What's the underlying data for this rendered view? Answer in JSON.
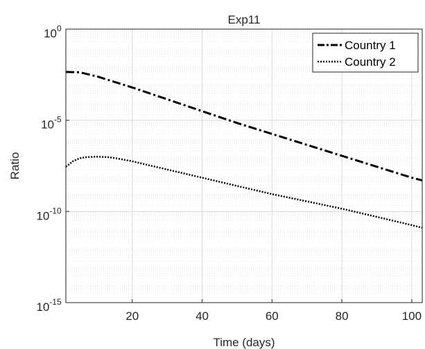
{
  "chart_data": {
    "type": "line",
    "title": "Exp11",
    "xlabel": "Time (days)",
    "ylabel": "Ratio",
    "xlim": [
      1,
      103
    ],
    "ylim_log10": [
      -15,
      0
    ],
    "yscale": "log",
    "grid": true,
    "minor_grid": true,
    "legend_position": "top-right",
    "x_ticks": [
      "20",
      "40",
      "60",
      "80",
      "100"
    ],
    "x_tick_values": [
      20,
      40,
      60,
      80,
      100
    ],
    "y_ticks": [
      {
        "base": "10",
        "exp": "0",
        "value": 0
      },
      {
        "base": "10",
        "exp": "-5",
        "value": -5
      },
      {
        "base": "10",
        "exp": "-10",
        "value": -10
      },
      {
        "base": "10",
        "exp": "-15",
        "value": -15
      }
    ],
    "series": [
      {
        "name": "Country 1",
        "style": "dash-dot",
        "color": "#000000",
        "x": [
          1,
          5,
          10,
          15,
          20,
          30,
          40,
          50,
          60,
          70,
          80,
          90,
          100,
          103
        ],
        "log10y": [
          -2.35,
          -2.37,
          -2.6,
          -2.9,
          -3.2,
          -3.85,
          -4.5,
          -5.15,
          -5.75,
          -6.35,
          -6.95,
          -7.55,
          -8.15,
          -8.3
        ]
      },
      {
        "name": "Country 2",
        "style": "dotted",
        "color": "#000000",
        "x": [
          1,
          3,
          5,
          7,
          10,
          13,
          15,
          20,
          30,
          40,
          50,
          60,
          70,
          80,
          90,
          100,
          103
        ],
        "log10y": [
          -7.55,
          -7.25,
          -7.08,
          -7.02,
          -7.0,
          -7.02,
          -7.07,
          -7.25,
          -7.7,
          -8.15,
          -8.6,
          -9.05,
          -9.45,
          -9.85,
          -10.3,
          -10.75,
          -10.9
        ]
      }
    ]
  }
}
